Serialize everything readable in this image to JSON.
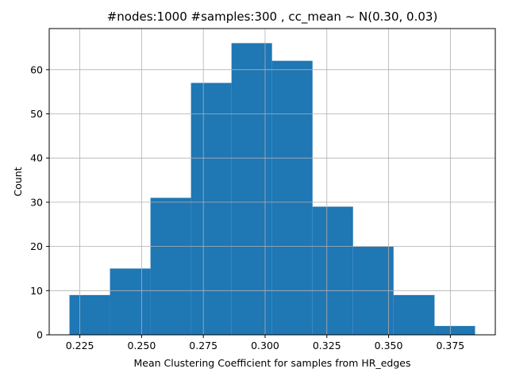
{
  "chart_data": {
    "type": "bar",
    "title": "#nodes:1000 #samples:300 , cc_mean ~ N(0.30, 0.03)",
    "xlabel": "Mean Clustering Coefficient for samples from HR_edges",
    "ylabel": "Count",
    "xlim": [
      0.2126,
      0.3932
    ],
    "ylim": [
      0,
      69.3
    ],
    "xticks": [
      0.225,
      0.25,
      0.275,
      0.3,
      0.325,
      0.35,
      0.375
    ],
    "xtick_labels": [
      "0.225",
      "0.250",
      "0.275",
      "0.300",
      "0.325",
      "0.350",
      "0.375"
    ],
    "yticks": [
      0,
      10,
      20,
      30,
      40,
      50,
      60
    ],
    "ytick_labels": [
      "0",
      "10",
      "20",
      "30",
      "40",
      "50",
      "60"
    ],
    "bin_edges": [
      0.2208,
      0.2372,
      0.2536,
      0.27,
      0.2864,
      0.3028,
      0.3192,
      0.3356,
      0.352,
      0.3686,
      0.385
    ],
    "values": [
      9,
      15,
      31,
      57,
      66,
      62,
      29,
      20,
      9,
      2
    ],
    "grid": true,
    "bar_color": "#1f77b4",
    "grid_color": "#b0b0b0"
  }
}
